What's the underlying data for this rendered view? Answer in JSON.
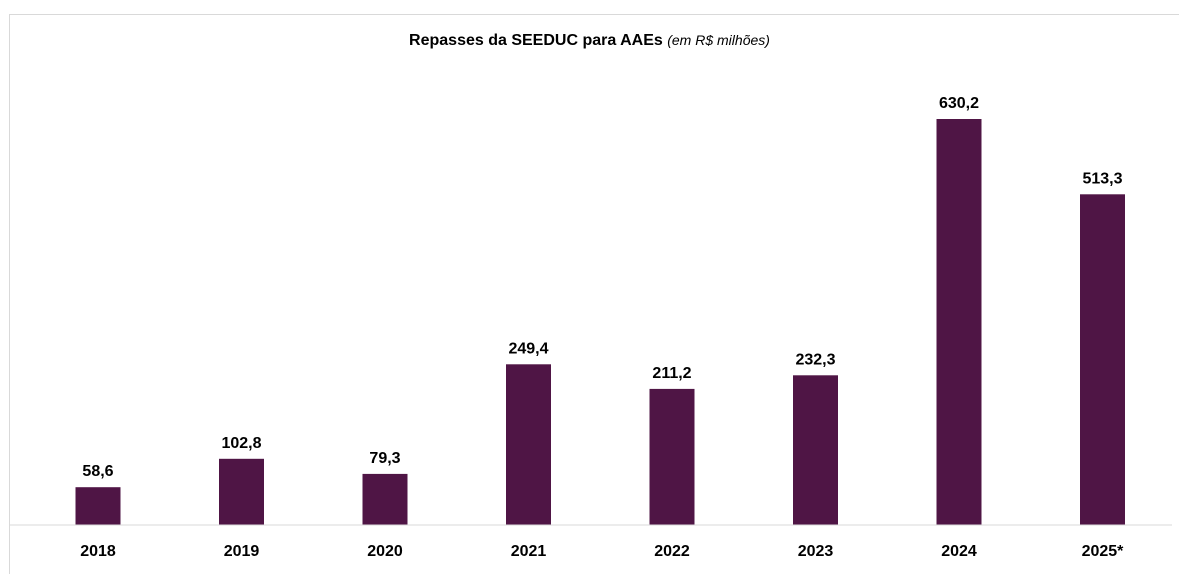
{
  "chart_data": {
    "type": "bar",
    "title": "Repasses da SEEDUC para AAEs",
    "subtitle": "(em R$ milhões)",
    "categories": [
      "2018",
      "2019",
      "2020",
      "2021",
      "2022",
      "2023",
      "2024",
      "2025*"
    ],
    "values": [
      58.6,
      102.8,
      79.3,
      249.4,
      211.2,
      232.3,
      630.2,
      513.3
    ],
    "data_labels": [
      "58,6",
      "102,8",
      "79,3",
      "249,4",
      "211,2",
      "232,3",
      "630,2",
      "513,3"
    ],
    "xlabel": "",
    "ylabel": "",
    "ylim": [
      0,
      700
    ],
    "grid": false,
    "legend": "none",
    "bar_color": "#4f1545",
    "axis_color": "#d9d9d9"
  }
}
